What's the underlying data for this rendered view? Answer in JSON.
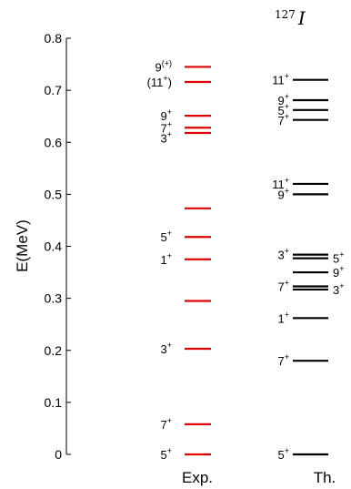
{
  "chart_data": {
    "type": "level-scheme",
    "title": "",
    "nucleus_label": {
      "mass": "127",
      "symbol": "I"
    },
    "ylabel": "E(MeV)",
    "ylim": [
      0,
      0.8
    ],
    "yticks": [
      0,
      0.1,
      0.2,
      0.3,
      0.4,
      0.5,
      0.6,
      0.7,
      0.8
    ],
    "ytick_labels": [
      "0",
      "0.1",
      "0.2",
      "0.3",
      "0.4",
      "0.5",
      "0.6",
      "0.7",
      "0.8"
    ],
    "grid": false,
    "series": [
      {
        "name": "Exp.",
        "color": "#e00000",
        "levels": [
          {
            "energy": 0.0,
            "label": "5",
            "sup": "+",
            "side": "left"
          },
          {
            "energy": 0.058,
            "label": "7",
            "sup": "+",
            "side": "left"
          },
          {
            "energy": 0.203,
            "label": "3",
            "sup": "+",
            "side": "left"
          },
          {
            "energy": 0.295,
            "label": "",
            "sup": "",
            "side": "left"
          },
          {
            "energy": 0.375,
            "label": "1",
            "sup": "+",
            "side": "left"
          },
          {
            "energy": 0.418,
            "label": "5",
            "sup": "+",
            "side": "left"
          },
          {
            "energy": 0.473,
            "label": "",
            "sup": "",
            "side": "left"
          },
          {
            "energy": 0.618,
            "label": "3",
            "sup": "+",
            "side": "left"
          },
          {
            "energy": 0.628,
            "label": "7",
            "sup": "+",
            "side": "left"
          },
          {
            "energy": 0.651,
            "label": "9",
            "sup": "+",
            "side": "left"
          },
          {
            "energy": 0.716,
            "label": "(11",
            "sup": "+",
            "suffix": ")",
            "side": "left"
          },
          {
            "energy": 0.745,
            "label": "9",
            "sup": "(+)",
            "side": "left"
          }
        ]
      },
      {
        "name": "Th.",
        "color": "#000000",
        "levels": [
          {
            "energy": 0.0,
            "label": "5",
            "sup": "+",
            "side": "left"
          },
          {
            "energy": 0.18,
            "label": "7",
            "sup": "+",
            "side": "left"
          },
          {
            "energy": 0.262,
            "label": "1",
            "sup": "+",
            "side": "left"
          },
          {
            "energy": 0.317,
            "label": "3",
            "sup": "+",
            "side": "right"
          },
          {
            "energy": 0.323,
            "label": "7",
            "sup": "+",
            "side": "left"
          },
          {
            "energy": 0.35,
            "label": "9",
            "sup": "+",
            "side": "right"
          },
          {
            "energy": 0.377,
            "label": "5",
            "sup": "+",
            "side": "right"
          },
          {
            "energy": 0.384,
            "label": "3",
            "sup": "+",
            "side": "left"
          },
          {
            "energy": 0.5,
            "label": "9",
            "sup": "+",
            "side": "left"
          },
          {
            "energy": 0.52,
            "label": "11",
            "sup": "+",
            "side": "left"
          },
          {
            "energy": 0.643,
            "label": "7",
            "sup": "+",
            "side": "left"
          },
          {
            "energy": 0.662,
            "label": "5",
            "sup": "+",
            "side": "left"
          },
          {
            "energy": 0.681,
            "label": "9",
            "sup": "+",
            "side": "left"
          },
          {
            "energy": 0.72,
            "label": "11",
            "sup": "+",
            "side": "left"
          }
        ]
      }
    ]
  }
}
